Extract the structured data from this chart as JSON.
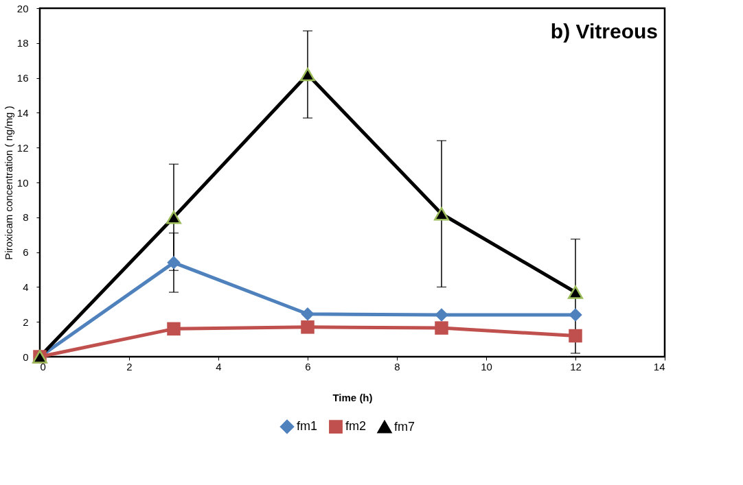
{
  "chart_data": {
    "type": "line",
    "xlabel": "Time (h)",
    "ylabel": "Piroxicam concentration ( ng/mg )",
    "annotations": [
      "b) Vitreous"
    ],
    "x": [
      0,
      3,
      6,
      9,
      12
    ],
    "series": [
      {
        "name": "fm1",
        "color": "#4f81bd",
        "marker": "diamond",
        "values": [
          0,
          5.4,
          2.45,
          2.4,
          2.4
        ],
        "errors": [
          null,
          1.7,
          null,
          null,
          null
        ]
      },
      {
        "name": "fm2",
        "color": "#c0504d",
        "marker": "square",
        "values": [
          0,
          1.6,
          1.7,
          1.65,
          1.2
        ]
      },
      {
        "name": "fm7",
        "color": "#000000",
        "marker": "triangle",
        "values": [
          0,
          8.0,
          16.2,
          8.2,
          3.7
        ],
        "errors": [
          null,
          3.05,
          2.5,
          4.2,
          [
            0.2,
            6.75
          ]
        ]
      }
    ],
    "xlim": [
      0,
      14
    ],
    "xticks": [
      0,
      2,
      4,
      6,
      8,
      10,
      12,
      14
    ],
    "ylim": [
      0,
      20
    ],
    "yticks": [
      0,
      2,
      4,
      6,
      8,
      10,
      12,
      14,
      16,
      18,
      20
    ],
    "grid": false,
    "legend": "bottom"
  }
}
